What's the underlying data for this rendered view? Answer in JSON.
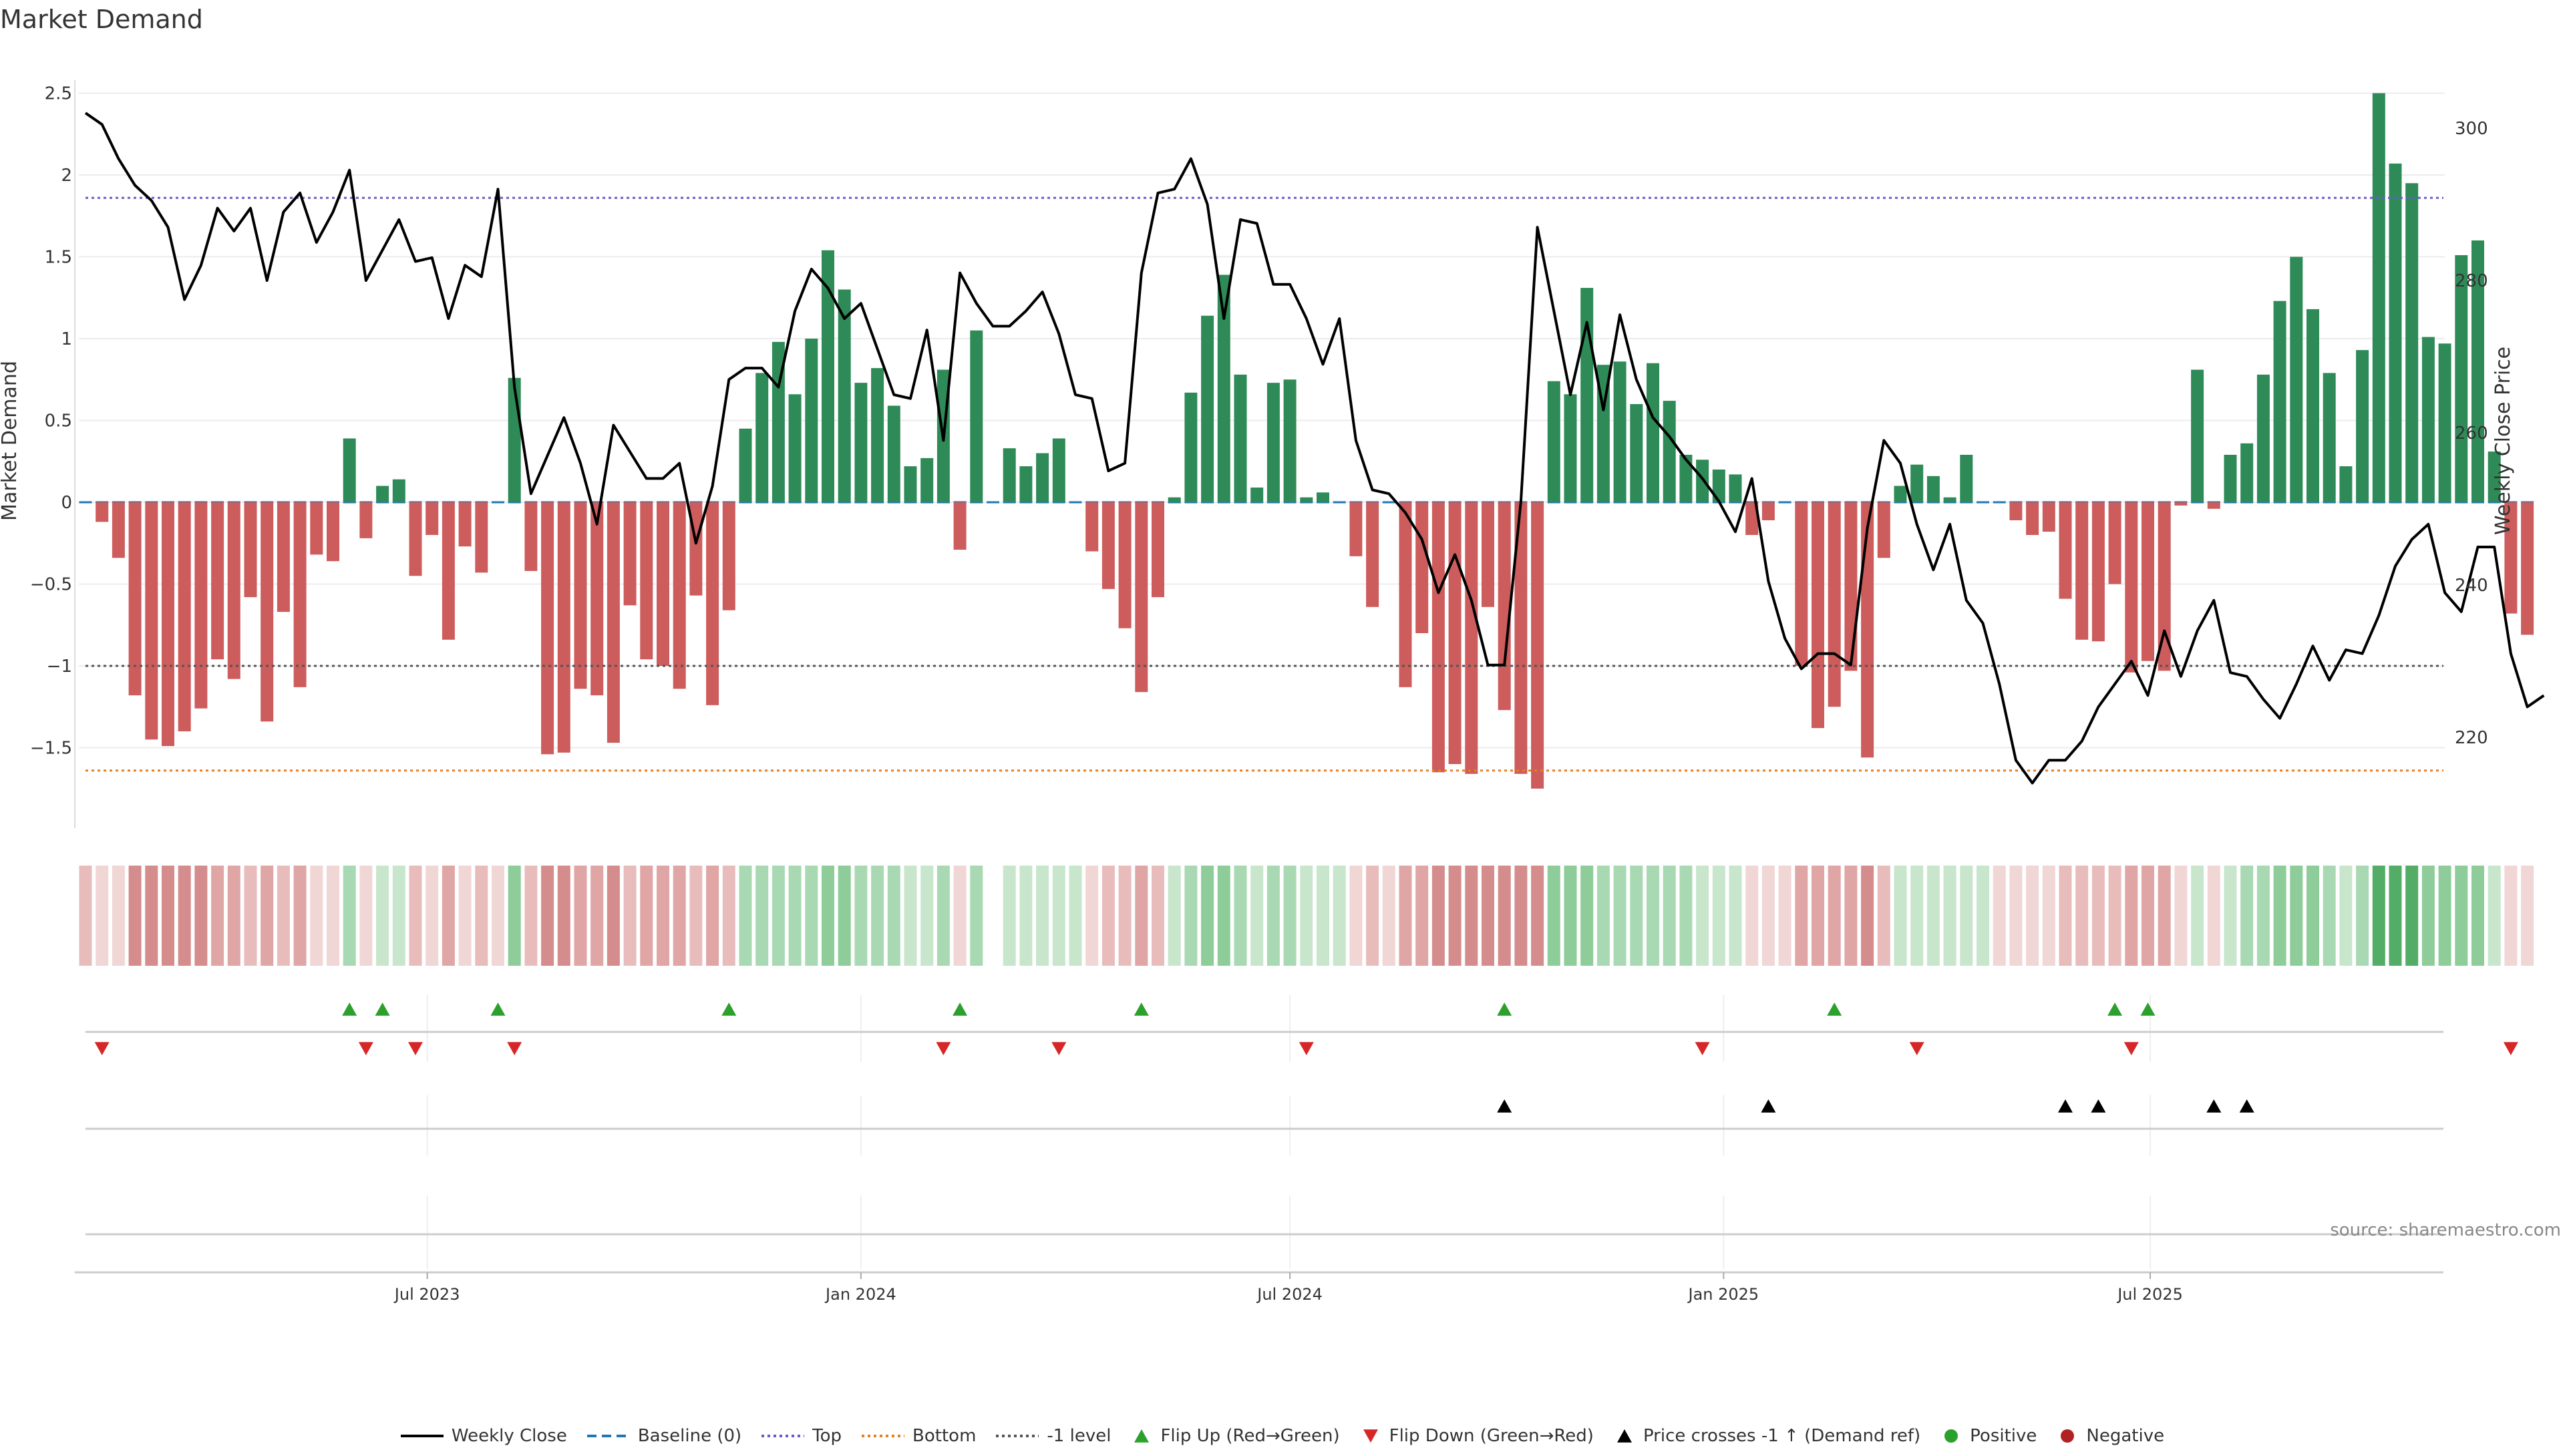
{
  "chart_data": {
    "type": "bar",
    "title": "Market Demand",
    "ylabel_left": "Market Demand",
    "ylabel_right": "Weekly Close Price",
    "source": "source: sharemaestro.com",
    "y_left_range": [
      -2.0,
      2.6
    ],
    "y_left_ticks": [
      2.5,
      2,
      1.5,
      1,
      0.5,
      0,
      -0.5,
      -1,
      -1.5
    ],
    "y_left_tick_labels": [
      "2.5",
      "2",
      "1.5",
      "1",
      "0.5",
      "0",
      "−0.5",
      "−1",
      "−1.5"
    ],
    "y_right_range": [
      208,
      305
    ],
    "y_right_ticks": [
      300,
      280,
      260,
      240,
      220
    ],
    "x_start": "2023-02-06",
    "x_tick_labels": [
      "Jul 2023",
      "Jan 2024",
      "Jul 2024",
      "Jan 2025",
      "Jul 2025"
    ],
    "x_tick_dates": [
      "2023-07-01",
      "2024-01-01",
      "2024-07-01",
      "2025-01-01",
      "2025-07-01"
    ],
    "reference_lines": {
      "top": 1.86,
      "bottom": -1.64,
      "minus_one": -1.0,
      "baseline": 0
    },
    "colors": {
      "positive": "#2e8b57",
      "negative": "#cd5c5c",
      "price": "#000000",
      "baseline": "#1f77b4",
      "top": "#6a5acd",
      "bottom": "#e67e22",
      "minus_one": "#555555",
      "flip_up": "#2ca02c",
      "flip_down": "#d62728",
      "cross": "#000000",
      "positive_dot": "#2ca02c",
      "negative_dot": "#b22222"
    },
    "series": [
      {
        "name": "Market Demand",
        "values": [
          0,
          -0.12,
          -0.34,
          -1.18,
          -1.45,
          -1.49,
          -1.4,
          -1.26,
          -0.96,
          -1.08,
          -0.58,
          -1.34,
          -0.67,
          -1.13,
          -0.32,
          -0.36,
          0.39,
          -0.22,
          0.1,
          0.14,
          -0.45,
          -0.2,
          -0.84,
          -0.27,
          -0.43,
          0,
          0.76,
          -0.42,
          -1.54,
          -1.53,
          -1.14,
          -1.18,
          -1.47,
          -0.63,
          -0.96,
          -1.0,
          -1.14,
          -0.57,
          -1.24,
          -0.66,
          0.45,
          0.79,
          0.98,
          0.66,
          1.0,
          1.54,
          1.3,
          0.73,
          0.82,
          0.59,
          0.22,
          0.27,
          0.81,
          -0.29,
          1.05,
          0,
          0.33,
          0.22,
          0.3,
          0.39,
          0,
          -0.3,
          -0.53,
          -0.77,
          -1.16,
          -0.58,
          0.03,
          0.67,
          1.14,
          1.39,
          0.78,
          0.09,
          0.73,
          0.75,
          0.03,
          0.06,
          0,
          -0.33,
          -0.64,
          0,
          -1.13,
          -0.8,
          -1.65,
          -1.6,
          -1.66,
          -0.64,
          -1.27,
          -1.66,
          -1.75,
          0.74,
          0.66,
          1.31,
          0.84,
          0.86,
          0.6,
          0.85,
          0.62,
          0.29,
          0.26,
          0.2,
          0.17,
          -0.2,
          -0.11,
          0,
          -1.0,
          -1.38,
          -1.25,
          -1.03,
          -1.56,
          -0.34,
          0.1,
          0.23,
          0.16,
          0.03,
          0.29,
          0,
          0,
          -0.11,
          -0.2,
          -0.18,
          -0.59,
          -0.84,
          -0.85,
          -0.5,
          -1.04,
          -0.97,
          -1.03,
          -0.02,
          0.81,
          -0.04,
          0.29,
          0.36,
          0.78,
          1.23,
          1.5,
          1.18,
          0.79,
          0.22,
          0.93,
          2.5,
          2.07,
          1.95,
          1.01,
          0.97,
          1.51,
          1.6,
          0.31,
          -0.68,
          -0.81
        ]
      },
      {
        "name": "Weekly Close",
        "values": [
          302,
          300.5,
          296,
          292.5,
          290.5,
          287,
          277.5,
          282,
          289.5,
          286.5,
          289.5,
          280,
          289,
          291.5,
          285,
          289,
          294.5,
          280,
          284,
          288,
          282.5,
          283,
          275,
          282,
          280.5,
          292,
          266,
          252,
          257,
          262,
          256,
          248,
          261,
          257.5,
          254,
          254,
          256,
          245.5,
          253,
          267,
          268.5,
          268.5,
          266,
          276,
          281.5,
          279,
          275,
          277,
          271,
          265,
          264.5,
          273.5,
          259,
          281,
          277,
          274,
          274,
          276,
          278.5,
          273,
          265,
          264.5,
          255,
          256,
          281,
          291.5,
          292,
          296,
          290,
          275,
          288,
          287.5,
          279.5,
          279.5,
          275,
          269,
          275,
          259,
          252.5,
          252,
          249.5,
          246,
          239,
          244,
          238,
          229.5,
          229.5,
          251,
          287,
          276,
          265,
          274.5,
          263,
          275.5,
          267,
          262,
          259.5,
          256.5,
          254,
          251,
          247,
          254,
          240.5,
          233,
          229,
          231,
          231,
          229.5,
          247.5,
          259,
          256,
          248,
          242,
          248,
          238,
          235,
          227,
          217,
          214,
          217,
          217,
          219.5,
          224,
          227,
          230,
          225.5,
          234,
          228,
          234,
          238,
          228.5,
          228,
          225,
          222.5,
          227,
          232,
          227.5,
          231.5,
          231,
          236,
          242.5,
          246,
          248,
          239,
          236.5,
          245,
          245,
          231,
          224,
          225.5
        ]
      }
    ],
    "intensity_strip": [
      1,
      0,
      0,
      3,
      3,
      3,
      3,
      3,
      2,
      2,
      1,
      2,
      1,
      2,
      0,
      0,
      1,
      0,
      0,
      0,
      1,
      0,
      2,
      0,
      1,
      0,
      2,
      1,
      3,
      3,
      2,
      2,
      3,
      1,
      2,
      2,
      2,
      1,
      2,
      1,
      1,
      1,
      1,
      1,
      1,
      2,
      2,
      1,
      1,
      1,
      0,
      0,
      1,
      0,
      1,
      -1,
      0,
      0,
      0,
      0,
      0,
      0,
      1,
      1,
      2,
      1,
      0,
      1,
      2,
      2,
      1,
      0,
      1,
      1,
      0,
      0,
      0,
      0,
      1,
      0,
      2,
      2,
      3,
      3,
      3,
      3,
      3,
      3,
      3,
      2,
      2,
      2,
      1,
      1,
      1,
      1,
      1,
      1,
      0,
      0,
      0,
      0,
      0,
      0,
      2,
      2,
      2,
      2,
      3,
      1,
      0,
      0,
      0,
      0,
      0,
      0,
      0,
      0,
      0,
      0,
      1,
      1,
      1,
      1,
      2,
      2,
      2,
      0,
      0,
      0,
      0,
      1,
      1,
      2,
      2,
      2,
      1,
      0,
      1,
      3,
      3,
      3,
      2,
      2,
      2,
      2,
      0,
      0,
      0
    ],
    "flip_up_weeks": [
      16,
      18,
      25,
      39,
      53,
      64,
      86,
      106,
      123,
      125
    ],
    "flip_down_weeks": [
      1,
      17,
      20,
      26,
      52,
      59,
      74,
      98,
      111,
      124,
      147
    ],
    "price_cross_weeks": [
      86,
      102,
      120,
      122,
      129,
      131
    ],
    "legend": [
      {
        "name": "Weekly Close",
        "symbol": "line",
        "color": "#000000"
      },
      {
        "name": "Baseline (0)",
        "symbol": "dash",
        "color": "#1f77b4"
      },
      {
        "name": "Top",
        "symbol": "dot",
        "color": "#6a5acd"
      },
      {
        "name": "Bottom",
        "symbol": "dot",
        "color": "#e67e22"
      },
      {
        "name": "-1 level",
        "symbol": "dot",
        "color": "#555555"
      },
      {
        "name": "Flip Up (Red→Green)",
        "symbol": "tri-up",
        "color": "#2ca02c"
      },
      {
        "name": "Flip Down (Green→Red)",
        "symbol": "tri-down",
        "color": "#d62728"
      },
      {
        "name": "Price crosses -1 ↑ (Demand ref)",
        "symbol": "tri-up",
        "color": "#000000"
      },
      {
        "name": "Positive",
        "symbol": "circle",
        "color": "#2ca02c"
      },
      {
        "name": "Negative",
        "symbol": "circle",
        "color": "#b22222"
      }
    ]
  }
}
